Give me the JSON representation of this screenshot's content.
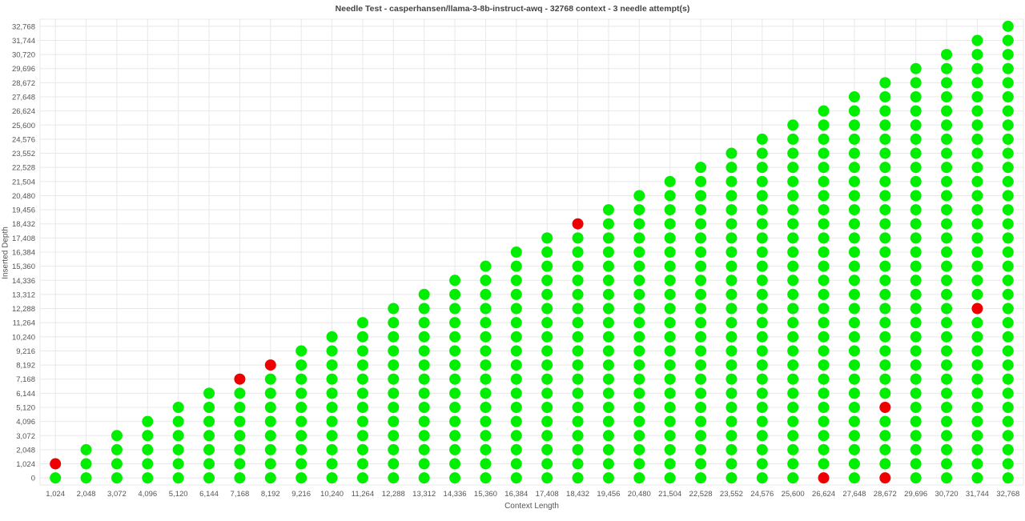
{
  "chart_data": {
    "type": "scatter",
    "title": "Needle Test - casperhansen/llama-3-8b-instruct-awq - 32768 context - 3 needle attempt(s)",
    "xlabel": "Context Length",
    "ylabel": "Inserted Depth",
    "x_ticks": [
      "1,024",
      "2,048",
      "3,072",
      "4,096",
      "5,120",
      "6,144",
      "7,168",
      "8,192",
      "9,216",
      "10,240",
      "11,264",
      "12,288",
      "13,312",
      "14,336",
      "15,360",
      "16,384",
      "17,408",
      "18,432",
      "19,456",
      "20,480",
      "21,504",
      "22,528",
      "23,552",
      "24,576",
      "25,600",
      "26,624",
      "27,648",
      "28,672",
      "29,696",
      "30,720",
      "31,744",
      "32,768"
    ],
    "y_ticks": [
      "0",
      "1,024",
      "2,048",
      "3,072",
      "4,096",
      "5,120",
      "6,144",
      "7,168",
      "8,192",
      "9,216",
      "10,240",
      "11,264",
      "12,288",
      "13,312",
      "14,336",
      "15,360",
      "16,384",
      "17,408",
      "18,432",
      "19,456",
      "20,480",
      "21,504",
      "22,528",
      "23,552",
      "24,576",
      "25,600",
      "26,624",
      "27,648",
      "28,672",
      "29,696",
      "30,720",
      "31,744",
      "32,768"
    ],
    "xlim": [
      1024,
      32768
    ],
    "ylim": [
      0,
      32768
    ],
    "step": 1024,
    "grid": true,
    "legend": "none",
    "description_of_points": "For each context length x, needles inserted at depths 0..x in steps of 1024; all passed except the listed failures",
    "failures": [
      {
        "x": 1024,
        "y": 1024
      },
      {
        "x": 7168,
        "y": 7168
      },
      {
        "x": 8192,
        "y": 8192
      },
      {
        "x": 18432,
        "y": 18432
      },
      {
        "x": 26624,
        "y": 0
      },
      {
        "x": 28672,
        "y": 0
      },
      {
        "x": 28672,
        "y": 5120
      },
      {
        "x": 31744,
        "y": 12288
      }
    ],
    "colors": {
      "pass": "#00ee00",
      "fail": "#ee0000",
      "grid": "#e8e8e8",
      "text": "#555555"
    }
  }
}
